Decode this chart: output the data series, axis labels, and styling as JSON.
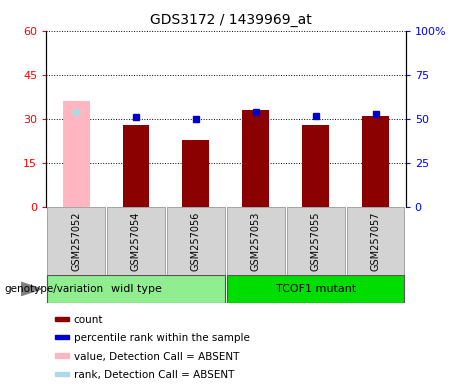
{
  "title": "GDS3172 / 1439969_at",
  "categories": [
    "GSM257052",
    "GSM257054",
    "GSM257056",
    "GSM257053",
    "GSM257055",
    "GSM257057"
  ],
  "group_labels": [
    "widl type",
    "TCOF1 mutant"
  ],
  "count_values": [
    null,
    28,
    23,
    33,
    28,
    31
  ],
  "count_absent": [
    36,
    null,
    null,
    null,
    null,
    null
  ],
  "rank_values": [
    null,
    51,
    50,
    54,
    52,
    53
  ],
  "rank_absent": [
    54,
    null,
    null,
    null,
    null,
    null
  ],
  "left_ylim": [
    0,
    60
  ],
  "right_ylim": [
    0,
    100
  ],
  "left_yticks": [
    0,
    15,
    30,
    45,
    60
  ],
  "right_yticks": [
    0,
    25,
    50,
    75,
    100
  ],
  "left_yticklabels": [
    "0",
    "15",
    "30",
    "45",
    "60"
  ],
  "right_yticklabels": [
    "0",
    "25",
    "50",
    "75",
    "100%"
  ],
  "bar_color_present": "#8B0000",
  "bar_color_absent": "#FFB6C1",
  "dot_color_present": "#0000CD",
  "dot_color_absent": "#ADD8E6",
  "group1_color": "#90EE90",
  "group2_color": "#00DD00",
  "genotype_label": "genotype/variation",
  "legend_items": [
    {
      "label": "count",
      "color": "#8B0000"
    },
    {
      "label": "percentile rank within the sample",
      "color": "#0000CD"
    },
    {
      "label": "value, Detection Call = ABSENT",
      "color": "#FFB6C1"
    },
    {
      "label": "rank, Detection Call = ABSENT",
      "color": "#ADD8E6"
    }
  ],
  "bar_width": 0.45
}
